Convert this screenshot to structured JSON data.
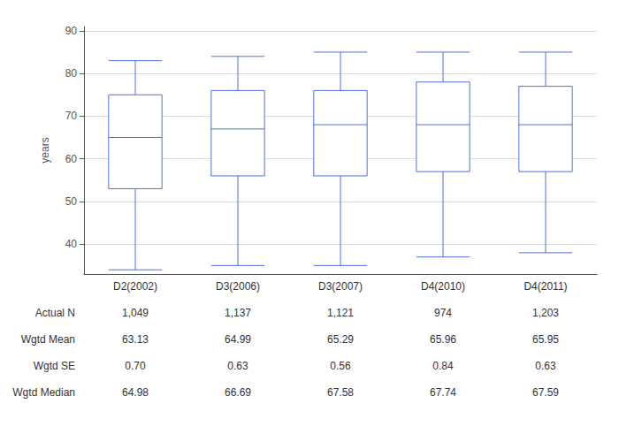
{
  "chart_data": {
    "type": "box",
    "categories": [
      "D2(2002)",
      "D3(2006)",
      "D3(2007)",
      "D4(2010)",
      "D4(2011)"
    ],
    "boxes": [
      {
        "whisker_low": 34,
        "q1": 53,
        "median": 65,
        "q3": 75,
        "whisker_high": 83,
        "mean": 63.13
      },
      {
        "whisker_low": 35,
        "q1": 56,
        "median": 67,
        "q3": 76,
        "whisker_high": 84,
        "mean": 64.99
      },
      {
        "whisker_low": 35,
        "q1": 56,
        "median": 68,
        "q3": 76,
        "whisker_high": 85,
        "mean": 65.29
      },
      {
        "whisker_low": 37,
        "q1": 57,
        "median": 68,
        "q3": 78,
        "whisker_high": 85,
        "mean": 65.96
      },
      {
        "whisker_low": 38,
        "q1": 57,
        "median": 68,
        "q3": 77,
        "whisker_high": 85,
        "mean": 65.95
      }
    ],
    "marker": "diamond",
    "ylabel": "years",
    "ylim": [
      33,
      91
    ],
    "yticks": [
      40,
      50,
      60,
      70,
      80,
      90
    ],
    "grid": true,
    "table_rows": [
      "Actual N",
      "Wgtd Mean",
      "Wgtd SE",
      "Wgtd Median"
    ],
    "table_data": [
      [
        "1,049",
        "1,137",
        "1,121",
        "974",
        "1,203"
      ],
      [
        "63.13",
        "64.99",
        "65.29",
        "65.96",
        "65.95"
      ],
      [
        "0.70",
        "0.63",
        "0.56",
        "0.84",
        "0.63"
      ],
      [
        "64.98",
        "66.69",
        "67.58",
        "67.74",
        "67.59"
      ]
    ]
  }
}
